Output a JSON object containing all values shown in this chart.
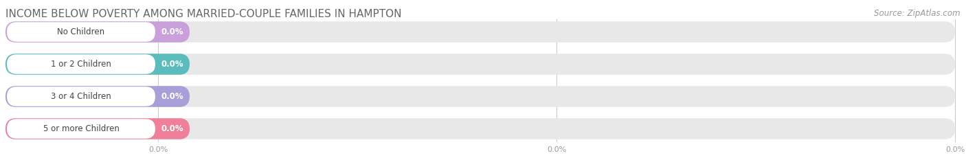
{
  "title": "INCOME BELOW POVERTY AMONG MARRIED-COUPLE FAMILIES IN HAMPTON",
  "source_text": "Source: ZipAtlas.com",
  "categories": [
    "No Children",
    "1 or 2 Children",
    "3 or 4 Children",
    "5 or more Children"
  ],
  "values": [
    0.0,
    0.0,
    0.0,
    0.0
  ],
  "bar_colors": [
    "#c9a0dc",
    "#5bbcbd",
    "#a89fd8",
    "#f08099"
  ],
  "background_color": "#ffffff",
  "bar_bg_color": "#e8e8e8",
  "bar_bg_color2": "#f0f0f0",
  "title_color": "#666666",
  "source_color": "#999999",
  "tick_color": "#999999",
  "title_fontsize": 11,
  "label_fontsize": 8.5,
  "value_fontsize": 8.5,
  "source_fontsize": 8.5,
  "tick_fontsize": 8
}
